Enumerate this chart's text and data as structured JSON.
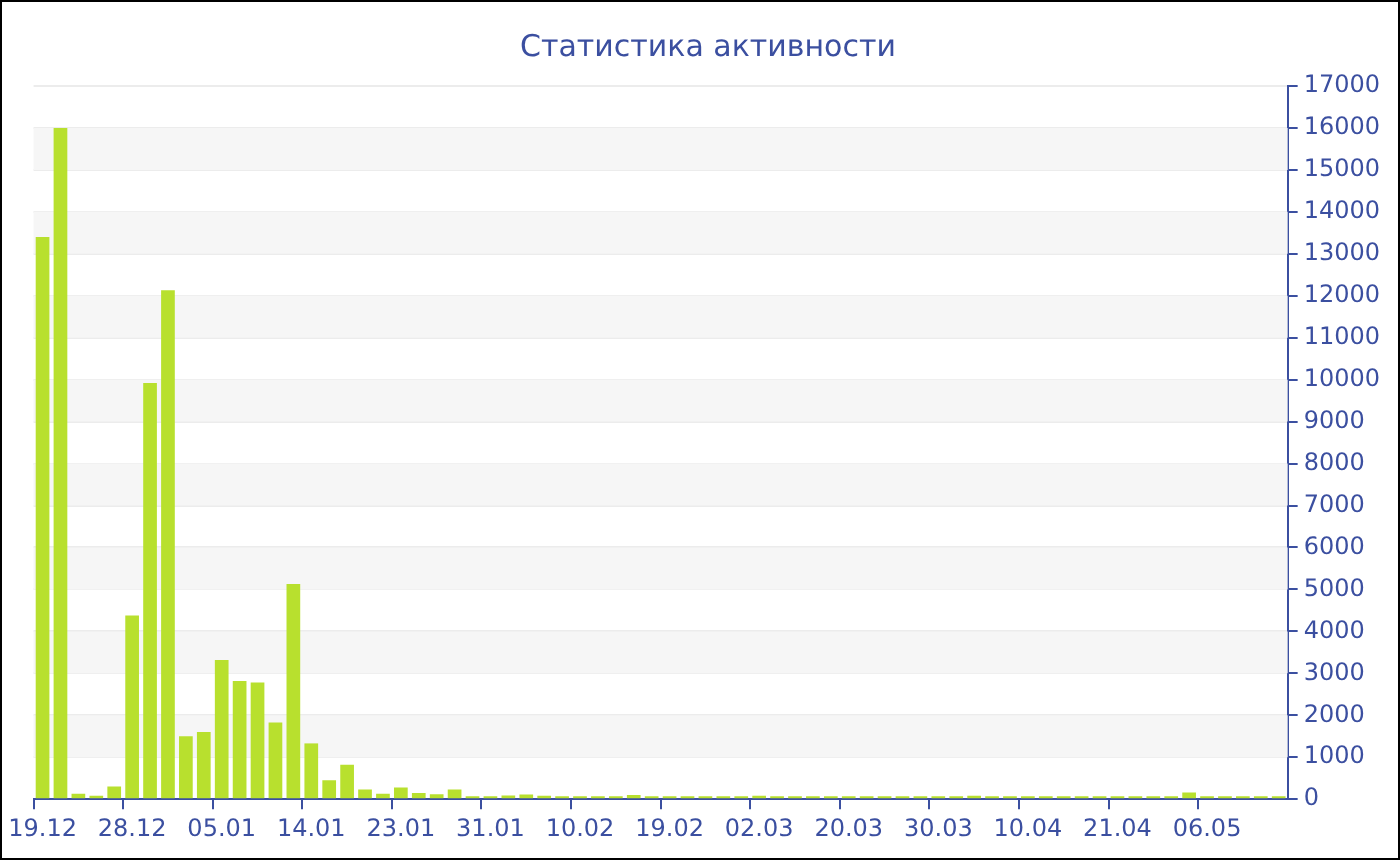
{
  "chart_data": {
    "type": "bar",
    "title": "Статистика активности",
    "categories": [
      "19.12",
      null,
      null,
      null,
      null,
      "28.12",
      null,
      null,
      null,
      null,
      "05.01",
      null,
      null,
      null,
      null,
      "14.01",
      null,
      null,
      null,
      null,
      "23.01",
      null,
      null,
      null,
      null,
      "31.01",
      null,
      null,
      null,
      null,
      "10.02",
      null,
      null,
      null,
      null,
      "19.02",
      null,
      null,
      null,
      null,
      "02.03",
      null,
      null,
      null,
      null,
      "20.03",
      null,
      null,
      null,
      null,
      "30.03",
      null,
      null,
      null,
      null,
      "10.04",
      null,
      null,
      null,
      null,
      "21.04",
      null,
      null,
      null,
      null,
      "06.05",
      null,
      null,
      null,
      null
    ],
    "values": [
      13400,
      16000,
      130,
      80,
      300,
      4380,
      9920,
      12130,
      1500,
      1600,
      3320,
      2820,
      2780,
      1830,
      5130,
      1330,
      450,
      820,
      230,
      130,
      280,
      150,
      120,
      230,
      70,
      70,
      90,
      110,
      80,
      70,
      70,
      70,
      70,
      100,
      70,
      70,
      70,
      70,
      70,
      70,
      80,
      70,
      70,
      70,
      70,
      70,
      70,
      70,
      70,
      70,
      70,
      70,
      80,
      70,
      70,
      70,
      70,
      70,
      70,
      70,
      70,
      70,
      70,
      70,
      160,
      70,
      70,
      70,
      70,
      70
    ],
    "color": "#b8e02e",
    "ylim": [
      0,
      17000
    ],
    "yticks": [
      0,
      1000,
      2000,
      3000,
      4000,
      5000,
      6000,
      7000,
      8000,
      9000,
      10000,
      11000,
      12000,
      13000,
      14000,
      15000,
      16000,
      17000
    ],
    "grid": "y"
  }
}
